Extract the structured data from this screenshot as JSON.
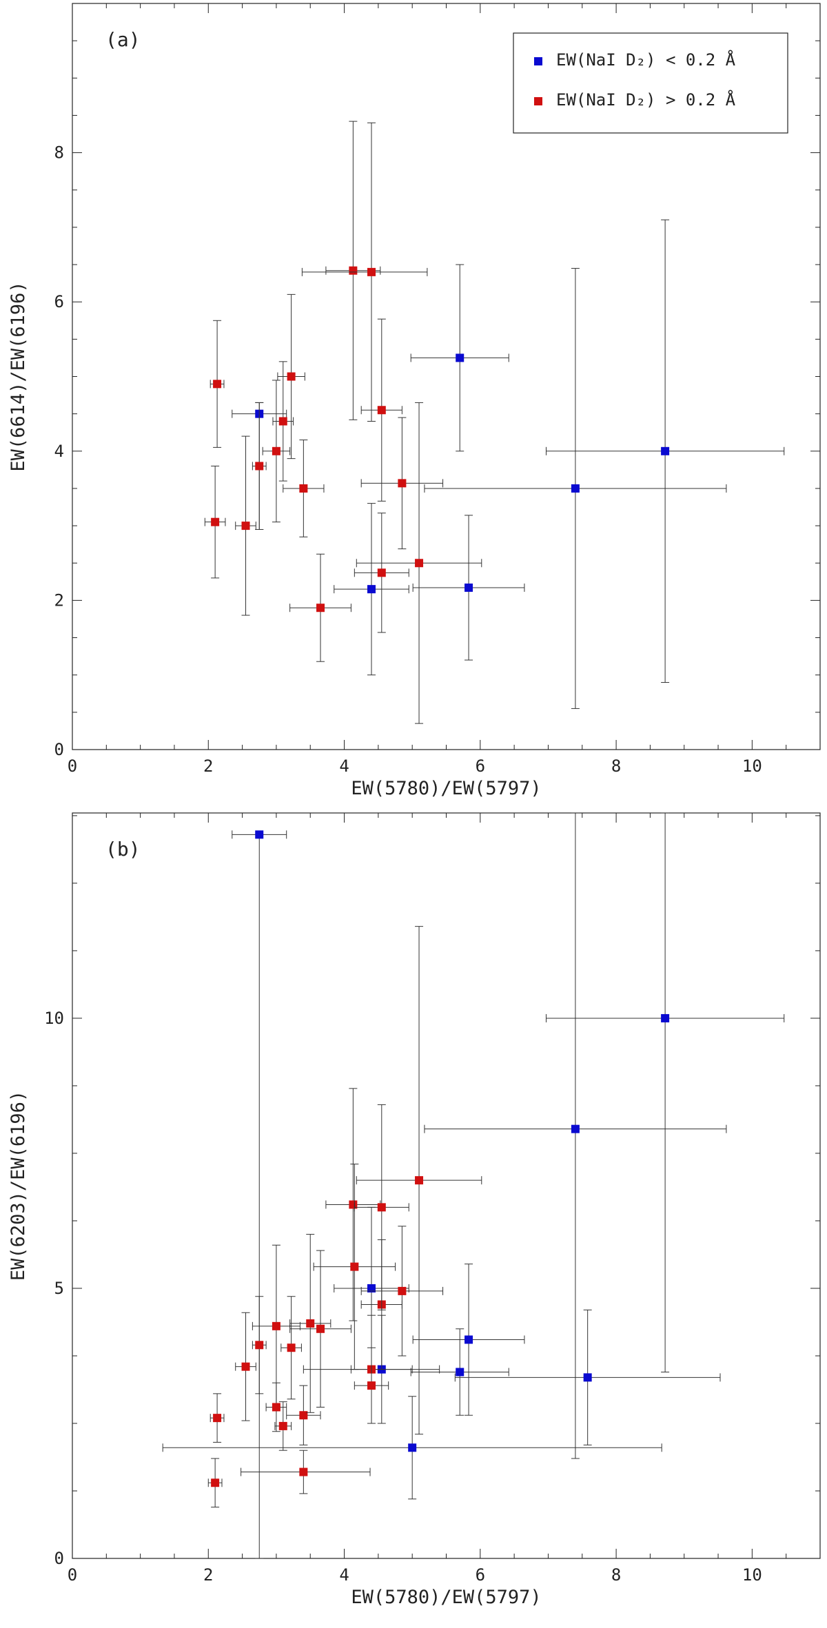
{
  "colors": {
    "blue": "#0a0ad0",
    "red": "#d01010",
    "axis": "#222222",
    "errorbar": "#333333"
  },
  "legend": {
    "items": [
      {
        "label": "EW(NaI D₂) < 0.2 Å",
        "color": "#0a0ad0"
      },
      {
        "label": "EW(NaI D₂) > 0.2 Å",
        "color": "#d01010"
      }
    ]
  },
  "chart_data": [
    {
      "type": "scatter",
      "panel_label": "(a)",
      "xlabel": "EW(5780)/EW(5797)",
      "ylabel": "EW(6614)/EW(6196)",
      "xlim": [
        0,
        11
      ],
      "ylim": [
        0,
        10
      ],
      "xticks": [
        0,
        2,
        4,
        6,
        8,
        10
      ],
      "yticks": [
        0,
        2,
        4,
        6,
        8
      ],
      "legend_position": "top-right",
      "series": [
        {
          "name": "EW(NaI D₂) < 0.2 Å",
          "color": "#0a0ad0",
          "points": [
            {
              "x": 2.75,
              "y": 4.5,
              "xerr": [
                0.4,
                0.4
              ],
              "yerr": [
                1.55,
                0.15
              ]
            },
            {
              "x": 4.4,
              "y": 2.15,
              "xerr": [
                0.55,
                0.55
              ],
              "yerr": [
                1.15,
                1.15
              ]
            },
            {
              "x": 5.7,
              "y": 5.25,
              "xerr": [
                0.72,
                0.72
              ],
              "yerr": [
                1.25,
                1.25
              ]
            },
            {
              "x": 5.83,
              "y": 2.17,
              "xerr": [
                0.82,
                0.82
              ],
              "yerr": [
                0.97,
                0.97
              ]
            },
            {
              "x": 7.4,
              "y": 3.5,
              "xerr": [
                2.22,
                2.22
              ],
              "yerr": [
                2.95,
                2.95
              ]
            },
            {
              "x": 8.72,
              "y": 4.0,
              "xerr": [
                1.75,
                1.75
              ],
              "yerr": [
                3.1,
                3.1
              ]
            }
          ]
        },
        {
          "name": "EW(NaI D₂) > 0.2 Å",
          "color": "#d01010",
          "points": [
            {
              "x": 2.13,
              "y": 4.9,
              "xerr": [
                0.1,
                0.1
              ],
              "yerr": [
                0.85,
                0.85
              ]
            },
            {
              "x": 2.1,
              "y": 3.05,
              "xerr": [
                0.15,
                0.15
              ],
              "yerr": [
                0.75,
                0.75
              ]
            },
            {
              "x": 2.55,
              "y": 3.0,
              "xerr": [
                0.15,
                0.15
              ],
              "yerr": [
                1.2,
                1.2
              ]
            },
            {
              "x": 2.75,
              "y": 3.8,
              "xerr": [
                0.1,
                0.1
              ],
              "yerr": [
                0.85,
                0.85
              ]
            },
            {
              "x": 3.0,
              "y": 4.0,
              "xerr": [
                0.2,
                0.2
              ],
              "yerr": [
                0.95,
                0.95
              ]
            },
            {
              "x": 3.1,
              "y": 4.4,
              "xerr": [
                0.15,
                0.15
              ],
              "yerr": [
                0.8,
                0.8
              ]
            },
            {
              "x": 3.22,
              "y": 5.0,
              "xerr": [
                0.2,
                0.2
              ],
              "yerr": [
                1.1,
                1.1
              ]
            },
            {
              "x": 3.4,
              "y": 3.5,
              "xerr": [
                0.3,
                0.3
              ],
              "yerr": [
                0.65,
                0.65
              ]
            },
            {
              "x": 3.65,
              "y": 1.9,
              "xerr": [
                0.45,
                0.45
              ],
              "yerr": [
                0.72,
                0.72
              ]
            },
            {
              "x": 4.13,
              "y": 6.42,
              "xerr": [
                0.4,
                0.4
              ],
              "yerr": [
                2.0,
                2.0
              ]
            },
            {
              "x": 4.4,
              "y": 6.4,
              "xerr": [
                1.02,
                0.82
              ],
              "yerr": [
                2.0,
                2.0
              ]
            },
            {
              "x": 4.55,
              "y": 4.55,
              "xerr": [
                0.3,
                0.3
              ],
              "yerr": [
                1.22,
                1.22
              ]
            },
            {
              "x": 4.55,
              "y": 2.37,
              "xerr": [
                0.4,
                0.4
              ],
              "yerr": [
                0.8,
                0.8
              ]
            },
            {
              "x": 4.85,
              "y": 3.57,
              "xerr": [
                0.6,
                0.6
              ],
              "yerr": [
                0.88,
                0.88
              ]
            },
            {
              "x": 5.1,
              "y": 2.5,
              "xerr": [
                0.92,
                0.92
              ],
              "yerr": [
                2.15,
                2.15
              ]
            }
          ]
        }
      ]
    },
    {
      "type": "scatter",
      "panel_label": "(b)",
      "xlabel": "EW(5780)/EW(5797)",
      "ylabel": "EW(6203)/EW(6196)",
      "xlim": [
        0,
        11
      ],
      "ylim": [
        0,
        13.8
      ],
      "xticks": [
        0,
        2,
        4,
        6,
        8,
        10
      ],
      "yticks": [
        0,
        5,
        10
      ],
      "series": [
        {
          "name": "EW(NaI D₂) < 0.2 Å",
          "color": "#0a0ad0",
          "points": [
            {
              "x": 2.75,
              "y": 13.4,
              "xerr": [
                0.4,
                0.4
              ],
              "yerr": [
                13.4,
                0
              ]
            },
            {
              "x": 4.4,
              "y": 5.0,
              "xerr": [
                0.55,
                0.55
              ],
              "yerr": [
                1.5,
                1.5
              ]
            },
            {
              "x": 4.55,
              "y": 3.5,
              "xerr": [
                0.45,
                0.45
              ],
              "yerr": [
                1.0,
                1.0
              ]
            },
            {
              "x": 5.0,
              "y": 2.05,
              "xerr": [
                3.67,
                3.67
              ],
              "yerr": [
                0.95,
                0.95
              ]
            },
            {
              "x": 5.7,
              "y": 3.45,
              "xerr": [
                0.72,
                0.72
              ],
              "yerr": [
                0.8,
                0.8
              ]
            },
            {
              "x": 5.83,
              "y": 4.05,
              "xerr": [
                0.82,
                0.82
              ],
              "yerr": [
                1.4,
                1.4
              ]
            },
            {
              "x": 7.4,
              "y": 7.95,
              "xerr": [
                2.22,
                2.22
              ],
              "yerr": [
                6.1,
                6.1
              ]
            },
            {
              "x": 7.58,
              "y": 3.35,
              "xerr": [
                1.95,
                1.95
              ],
              "yerr": [
                1.25,
                1.25
              ]
            },
            {
              "x": 8.72,
              "y": 10.0,
              "xerr": [
                1.75,
                1.75
              ],
              "yerr": [
                6.55,
                6.55
              ]
            }
          ]
        },
        {
          "name": "EW(NaI D₂) > 0.2 Å",
          "color": "#d01010",
          "points": [
            {
              "x": 2.13,
              "y": 2.6,
              "xerr": [
                0.1,
                0.1
              ],
              "yerr": [
                0.45,
                0.45
              ]
            },
            {
              "x": 2.1,
              "y": 1.4,
              "xerr": [
                0.1,
                0.1
              ],
              "yerr": [
                0.45,
                0.45
              ]
            },
            {
              "x": 2.55,
              "y": 3.55,
              "xerr": [
                0.15,
                0.15
              ],
              "yerr": [
                1.0,
                1.0
              ]
            },
            {
              "x": 2.75,
              "y": 3.95,
              "xerr": [
                0.1,
                0.1
              ],
              "yerr": [
                0.9,
                0.9
              ]
            },
            {
              "x": 3.0,
              "y": 4.3,
              "xerr": [
                0.35,
                0.35
              ],
              "yerr": [
                1.5,
                1.5
              ]
            },
            {
              "x": 3.0,
              "y": 2.8,
              "xerr": [
                0.15,
                0.15
              ],
              "yerr": [
                0.45,
                0.45
              ]
            },
            {
              "x": 3.1,
              "y": 2.45,
              "xerr": [
                0.12,
                0.12
              ],
              "yerr": [
                0.45,
                0.45
              ]
            },
            {
              "x": 3.22,
              "y": 3.9,
              "xerr": [
                0.15,
                0.15
              ],
              "yerr": [
                0.95,
                0.95
              ]
            },
            {
              "x": 3.4,
              "y": 2.65,
              "xerr": [
                0.25,
                0.25
              ],
              "yerr": [
                0.55,
                0.55
              ]
            },
            {
              "x": 3.4,
              "y": 1.6,
              "xerr": [
                0.92,
                0.98
              ],
              "yerr": [
                0.4,
                0.4
              ]
            },
            {
              "x": 3.5,
              "y": 4.35,
              "xerr": [
                0.3,
                0.3
              ],
              "yerr": [
                1.65,
                1.65
              ]
            },
            {
              "x": 3.65,
              "y": 4.25,
              "xerr": [
                0.45,
                0.45
              ],
              "yerr": [
                1.45,
                1.45
              ]
            },
            {
              "x": 4.13,
              "y": 6.55,
              "xerr": [
                0.4,
                0.4
              ],
              "yerr": [
                2.15,
                2.15
              ]
            },
            {
              "x": 4.15,
              "y": 5.4,
              "xerr": [
                0.6,
                0.6
              ],
              "yerr": [
                1.9,
                1.9
              ]
            },
            {
              "x": 4.4,
              "y": 3.5,
              "xerr": [
                1.0,
                1.0
              ],
              "yerr": [
                1.0,
                1.0
              ]
            },
            {
              "x": 4.4,
              "y": 3.2,
              "xerr": [
                0.25,
                0.25
              ],
              "yerr": [
                0.7,
                0.7
              ]
            },
            {
              "x": 4.55,
              "y": 4.7,
              "xerr": [
                0.3,
                0.3
              ],
              "yerr": [
                1.2,
                1.2
              ]
            },
            {
              "x": 4.55,
              "y": 6.5,
              "xerr": [
                0.4,
                0.4
              ],
              "yerr": [
                1.9,
                1.9
              ]
            },
            {
              "x": 4.85,
              "y": 4.95,
              "xerr": [
                0.6,
                0.6
              ],
              "yerr": [
                1.2,
                1.2
              ]
            },
            {
              "x": 5.1,
              "y": 7.0,
              "xerr": [
                0.92,
                0.92
              ],
              "yerr": [
                4.7,
                4.7
              ]
            }
          ]
        }
      ]
    }
  ]
}
